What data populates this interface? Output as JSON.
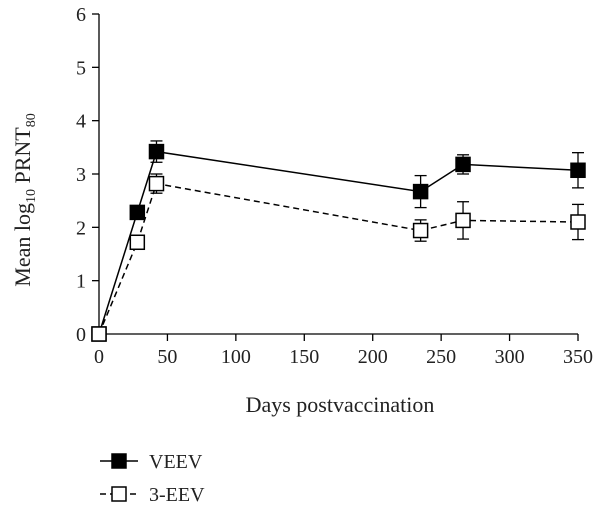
{
  "chart_data": {
    "type": "line",
    "xlabel": "Days postvaccination",
    "ylabel": {
      "main": "Mean log",
      "sub": "10",
      "tail": " PRNT",
      "sub2": "80"
    },
    "xlim": [
      0,
      350
    ],
    "ylim": [
      0,
      6
    ],
    "x_ticks": [
      0,
      50,
      100,
      150,
      200,
      250,
      300,
      350
    ],
    "y_ticks": [
      0,
      1,
      2,
      3,
      4,
      5,
      6
    ],
    "grid": false,
    "legend_position": "bottom-left",
    "series": [
      {
        "name": "VEEV",
        "marker": "filled-square",
        "line": "solid",
        "color": "#000000",
        "x": [
          0,
          28,
          42,
          235,
          266,
          350
        ],
        "y": [
          0.0,
          2.28,
          3.42,
          2.67,
          3.18,
          3.07
        ],
        "err": [
          0.0,
          0.08,
          0.2,
          0.3,
          0.18,
          0.33
        ]
      },
      {
        "name": "3-EEV",
        "marker": "open-square",
        "line": "dashed",
        "color": "#000000",
        "x": [
          0,
          28,
          42,
          235,
          266,
          350
        ],
        "y": [
          0.0,
          1.72,
          2.82,
          1.94,
          2.13,
          2.1
        ],
        "err": [
          0.0,
          0.12,
          0.18,
          0.2,
          0.35,
          0.33
        ]
      }
    ]
  }
}
